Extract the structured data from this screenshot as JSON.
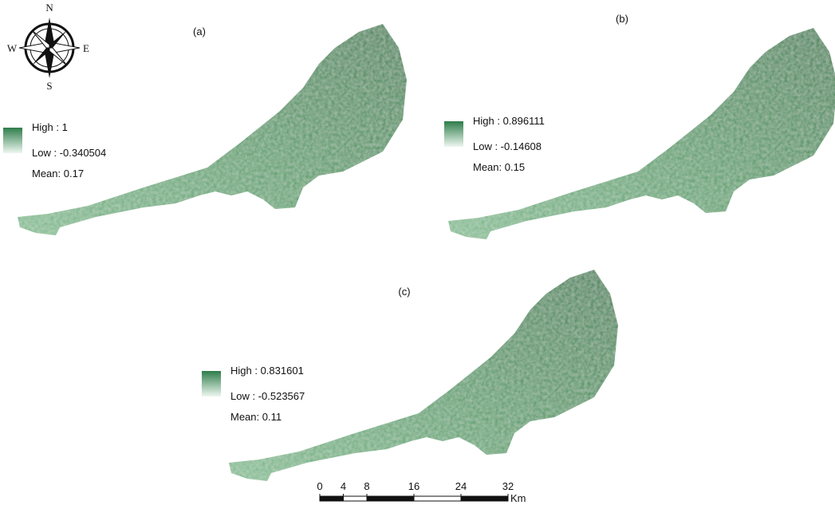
{
  "compass": {
    "north": "N",
    "south": "S",
    "east": "E",
    "west": "W"
  },
  "panels": [
    {
      "label": "(a)",
      "high": "High : 1",
      "low": "Low : -0.340504",
      "mean": "Mean: 0.17"
    },
    {
      "label": "(b)",
      "high": "High : 0.896111",
      "low": "Low : -0.14608",
      "mean": "Mean: 0.15"
    },
    {
      "label": "(c)",
      "high": "High : 0.831601",
      "low": "Low : -0.523567",
      "mean": "Mean: 0.11"
    }
  ],
  "scale_bar": {
    "ticks": [
      0,
      4,
      8,
      16,
      24,
      32
    ],
    "unit": "Km"
  }
}
